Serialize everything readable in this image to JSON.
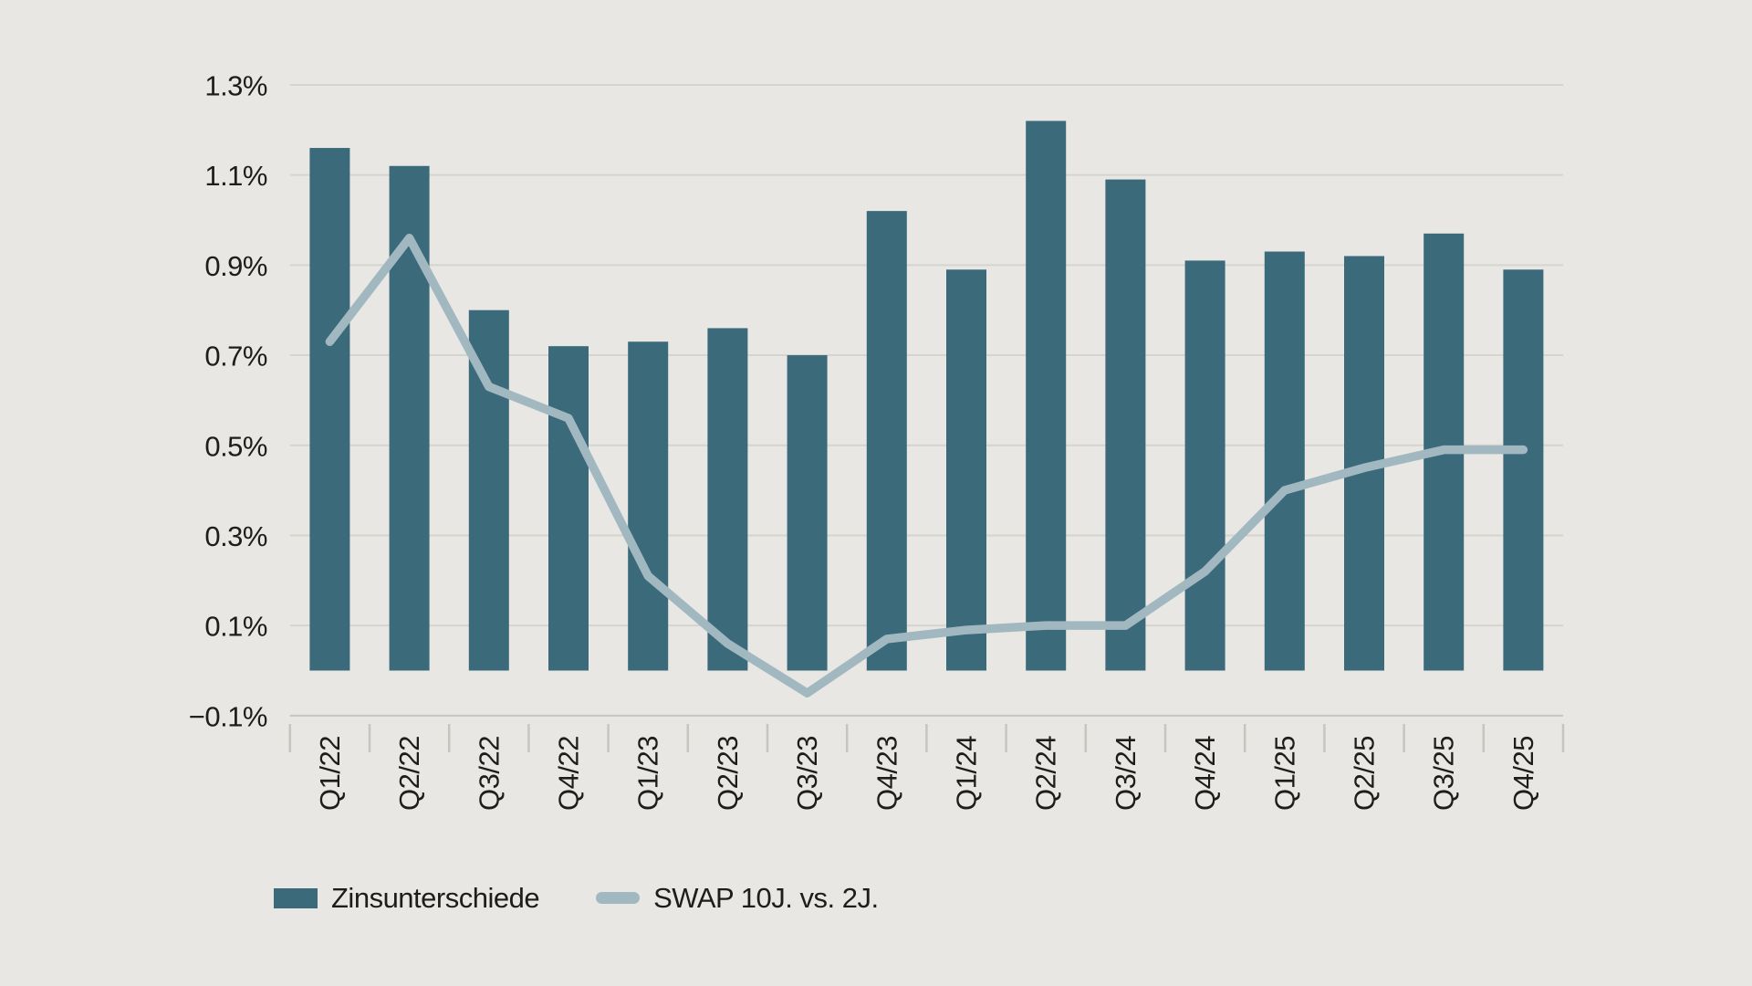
{
  "colors": {
    "background": "#e8e7e3",
    "bar": "#3b6a7b",
    "line": "#a2b8c0",
    "grid": "#d5d4cf",
    "axis": "#c6c5c0",
    "tick": "#c6c5c0",
    "text": "#1d1d1b"
  },
  "legend": {
    "items": [
      {
        "label": "Zinsunterschiede",
        "swatch": "bar"
      },
      {
        "label": "SWAP 10J. vs. 2J.",
        "swatch": "line"
      }
    ]
  },
  "chart_data": {
    "type": "bar",
    "subtype": "bar-line-combo",
    "title": "",
    "xlabel": "",
    "ylabel": "",
    "grid": true,
    "legend_position": "bottom-left",
    "categories": [
      "Q1/22",
      "Q2/22",
      "Q3/22",
      "Q4/22",
      "Q1/23",
      "Q2/23",
      "Q3/23",
      "Q4/23",
      "Q1/24",
      "Q2/24",
      "Q3/24",
      "Q4/24",
      "Q1/25",
      "Q2/25",
      "Q3/25",
      "Q4/25"
    ],
    "series": [
      {
        "name": "Zinsunterschiede",
        "type": "bar",
        "color": "#3b6a7b",
        "values": [
          1.16,
          1.12,
          0.8,
          0.72,
          0.73,
          0.76,
          0.7,
          1.02,
          0.89,
          1.22,
          1.09,
          0.91,
          0.93,
          0.92,
          0.97,
          0.89
        ]
      },
      {
        "name": "SWAP 10J. vs. 2J.",
        "type": "line",
        "color": "#a2b8c0",
        "values": [
          0.73,
          0.96,
          0.63,
          0.56,
          0.21,
          0.06,
          -0.05,
          0.07,
          0.09,
          0.1,
          0.1,
          0.22,
          0.4,
          0.45,
          0.49,
          0.49
        ]
      }
    ],
    "y_axis": {
      "unit": "%",
      "min": -0.1,
      "max": 1.3,
      "step": 0.2,
      "ticks": [
        {
          "value": 1.3,
          "label": "1.3%"
        },
        {
          "value": 1.1,
          "label": "1.1%"
        },
        {
          "value": 0.9,
          "label": "0.9%"
        },
        {
          "value": 0.7,
          "label": "0.7%"
        },
        {
          "value": 0.5,
          "label": "0.5%"
        },
        {
          "value": 0.3,
          "label": "0.3%"
        },
        {
          "value": 0.1,
          "label": "0.1%"
        },
        {
          "value": -0.1,
          "label": "−0.1%"
        }
      ]
    }
  }
}
